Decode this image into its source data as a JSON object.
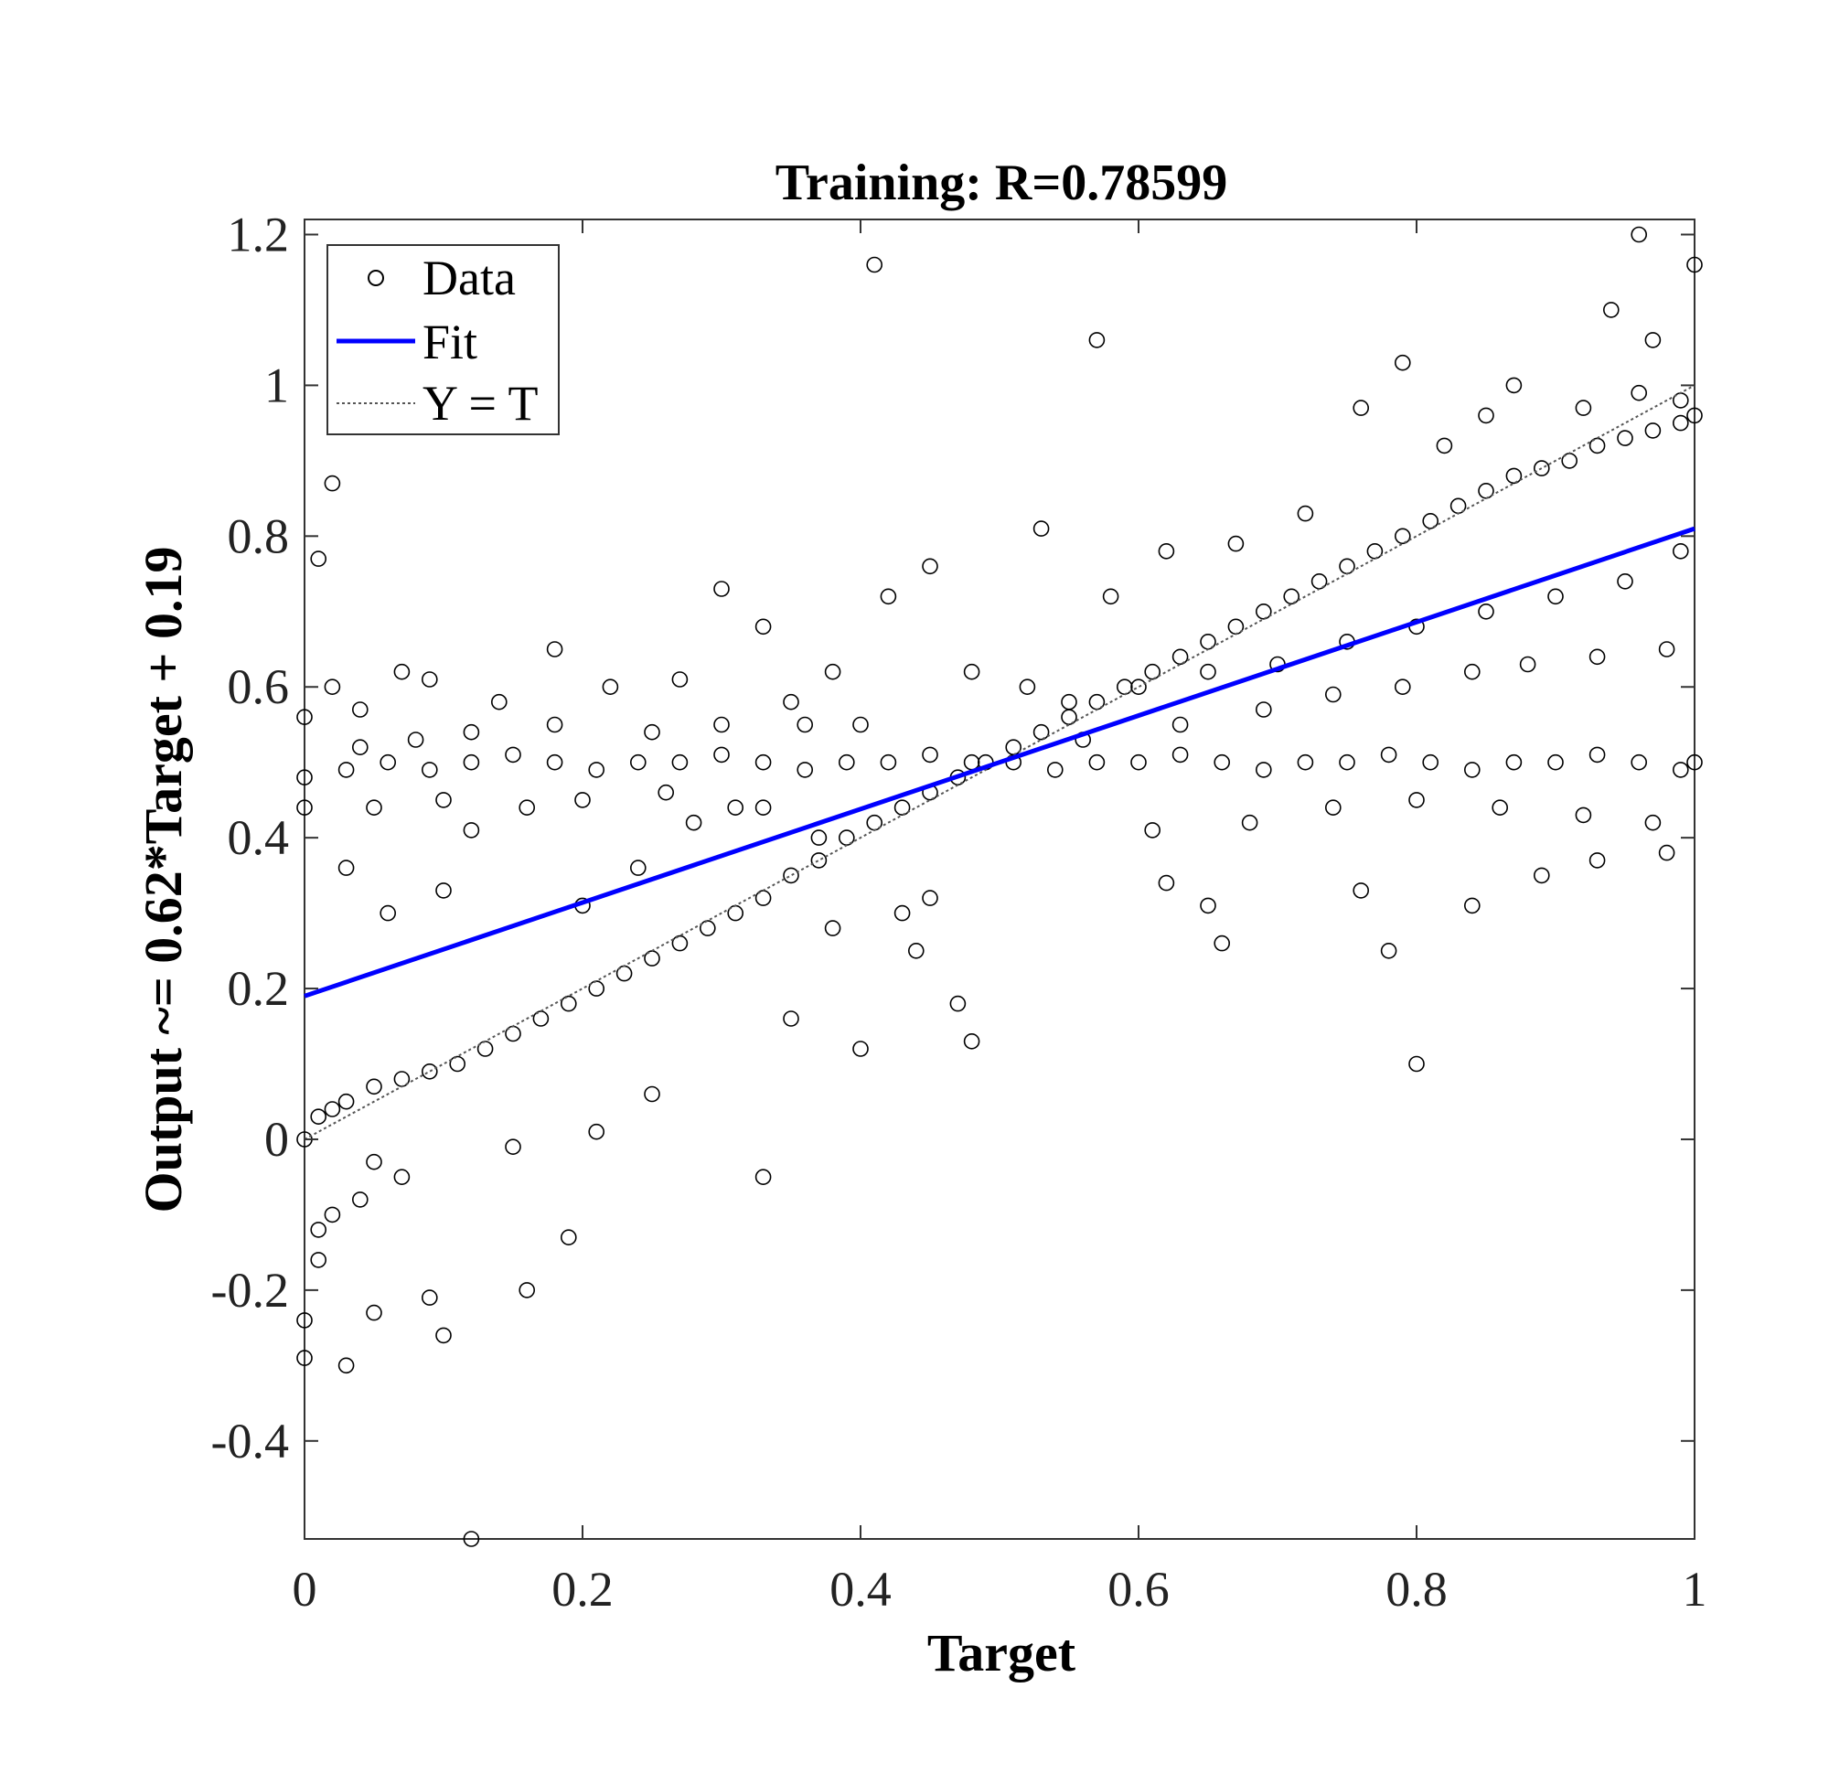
{
  "chart_data": {
    "type": "scatter",
    "title": "Training: R=0.78599",
    "xlabel": "Target",
    "ylabel": "Output ~= 0.62*Target + 0.19",
    "xlim": [
      0,
      1
    ],
    "ylim": [
      -0.53,
      1.22
    ],
    "x_ticks": [
      0,
      0.2,
      0.4,
      0.6,
      0.8,
      1
    ],
    "x_tick_labels": [
      "0",
      "0.2",
      "0.4",
      "0.6",
      "0.8",
      "1"
    ],
    "y_ticks": [
      -0.4,
      -0.2,
      0,
      0.2,
      0.4,
      0.6,
      0.8,
      1,
      1.2
    ],
    "y_tick_labels": [
      "-0.4",
      "-0.2",
      "0",
      "0.2",
      "0.4",
      "0.6",
      "0.8",
      "1",
      "1.2"
    ],
    "grid": false,
    "legend": {
      "placement": "top-left",
      "entries": [
        "Data",
        "Fit",
        "Y = T"
      ]
    },
    "colors": {
      "data": "#000000",
      "fit": "#0000ff",
      "identity": "#555555"
    },
    "fit": {
      "slope": 0.62,
      "intercept": 0.19
    },
    "series": [
      {
        "name": "Data",
        "marker": "open-circle",
        "points": [
          [
            0.0,
            0.0
          ],
          [
            0.01,
            0.03
          ],
          [
            0.02,
            0.04
          ],
          [
            0.03,
            0.05
          ],
          [
            0.05,
            0.07
          ],
          [
            0.07,
            0.08
          ],
          [
            0.09,
            0.09
          ],
          [
            0.11,
            0.1
          ],
          [
            0.13,
            0.12
          ],
          [
            0.15,
            0.14
          ],
          [
            0.17,
            0.16
          ],
          [
            0.19,
            0.18
          ],
          [
            0.21,
            0.2
          ],
          [
            0.23,
            0.22
          ],
          [
            0.25,
            0.24
          ],
          [
            0.27,
            0.26
          ],
          [
            0.29,
            0.28
          ],
          [
            0.31,
            0.3
          ],
          [
            0.33,
            0.32
          ],
          [
            0.35,
            0.35
          ],
          [
            0.37,
            0.37
          ],
          [
            0.39,
            0.4
          ],
          [
            0.41,
            0.42
          ],
          [
            0.43,
            0.44
          ],
          [
            0.45,
            0.46
          ],
          [
            0.47,
            0.48
          ],
          [
            0.49,
            0.5
          ],
          [
            0.51,
            0.52
          ],
          [
            0.53,
            0.54
          ],
          [
            0.55,
            0.56
          ],
          [
            0.57,
            0.58
          ],
          [
            0.59,
            0.6
          ],
          [
            0.61,
            0.62
          ],
          [
            0.63,
            0.64
          ],
          [
            0.65,
            0.66
          ],
          [
            0.67,
            0.68
          ],
          [
            0.69,
            0.7
          ],
          [
            0.71,
            0.72
          ],
          [
            0.73,
            0.74
          ],
          [
            0.75,
            0.76
          ],
          [
            0.77,
            0.78
          ],
          [
            0.79,
            0.8
          ],
          [
            0.81,
            0.82
          ],
          [
            0.83,
            0.84
          ],
          [
            0.85,
            0.86
          ],
          [
            0.87,
            0.88
          ],
          [
            0.89,
            0.89
          ],
          [
            0.91,
            0.9
          ],
          [
            0.93,
            0.92
          ],
          [
            0.95,
            0.93
          ],
          [
            0.97,
            0.94
          ],
          [
            0.99,
            0.95
          ],
          [
            1.0,
            0.96
          ],
          [
            0.0,
            0.48
          ],
          [
            0.03,
            0.49
          ],
          [
            0.06,
            0.5
          ],
          [
            0.09,
            0.49
          ],
          [
            0.12,
            0.5
          ],
          [
            0.15,
            0.51
          ],
          [
            0.18,
            0.5
          ],
          [
            0.21,
            0.49
          ],
          [
            0.24,
            0.5
          ],
          [
            0.27,
            0.5
          ],
          [
            0.3,
            0.51
          ],
          [
            0.33,
            0.5
          ],
          [
            0.36,
            0.49
          ],
          [
            0.39,
            0.5
          ],
          [
            0.42,
            0.5
          ],
          [
            0.45,
            0.51
          ],
          [
            0.48,
            0.5
          ],
          [
            0.51,
            0.5
          ],
          [
            0.54,
            0.49
          ],
          [
            0.57,
            0.5
          ],
          [
            0.6,
            0.5
          ],
          [
            0.63,
            0.51
          ],
          [
            0.66,
            0.5
          ],
          [
            0.69,
            0.49
          ],
          [
            0.72,
            0.5
          ],
          [
            0.75,
            0.5
          ],
          [
            0.78,
            0.51
          ],
          [
            0.81,
            0.5
          ],
          [
            0.84,
            0.49
          ],
          [
            0.87,
            0.5
          ],
          [
            0.9,
            0.5
          ],
          [
            0.93,
            0.51
          ],
          [
            0.96,
            0.5
          ],
          [
            0.99,
            0.49
          ],
          [
            1.0,
            0.5
          ],
          [
            0.02,
            0.87
          ],
          [
            0.01,
            0.77
          ],
          [
            0.41,
            1.16
          ],
          [
            0.57,
            1.06
          ],
          [
            0.96,
            1.2
          ],
          [
            1.0,
            1.16
          ],
          [
            0.94,
            1.1
          ],
          [
            0.97,
            1.06
          ],
          [
            0.79,
            1.03
          ],
          [
            0.76,
            0.97
          ],
          [
            0.53,
            0.81
          ],
          [
            0.3,
            0.73
          ],
          [
            0.42,
            0.72
          ],
          [
            0.45,
            0.76
          ],
          [
            0.07,
            0.62
          ],
          [
            0.18,
            0.65
          ],
          [
            0.33,
            0.68
          ],
          [
            0.01,
            -0.12
          ],
          [
            0.0,
            -0.24
          ],
          [
            0.0,
            -0.29
          ],
          [
            0.03,
            -0.3
          ],
          [
            0.05,
            -0.23
          ],
          [
            0.09,
            -0.21
          ],
          [
            0.1,
            -0.26
          ],
          [
            0.16,
            -0.2
          ],
          [
            0.19,
            -0.13
          ],
          [
            0.12,
            -0.53
          ],
          [
            0.33,
            -0.05
          ],
          [
            0.4,
            0.12
          ],
          [
            0.48,
            0.13
          ],
          [
            0.8,
            0.1
          ],
          [
            0.78,
            0.25
          ],
          [
            0.76,
            0.33
          ],
          [
            0.65,
            0.31
          ],
          [
            0.62,
            0.34
          ],
          [
            0.66,
            0.26
          ],
          [
            0.84,
            0.31
          ],
          [
            0.89,
            0.35
          ],
          [
            0.93,
            0.37
          ],
          [
            0.98,
            0.38
          ],
          [
            0.45,
            0.32
          ],
          [
            0.43,
            0.3
          ],
          [
            0.44,
            0.25
          ],
          [
            0.47,
            0.18
          ],
          [
            0.38,
            0.28
          ],
          [
            0.35,
            0.16
          ],
          [
            0.25,
            0.06
          ],
          [
            0.21,
            0.01
          ],
          [
            0.15,
            -0.01
          ],
          [
            0.07,
            -0.05
          ],
          [
            0.05,
            -0.03
          ],
          [
            0.04,
            -0.08
          ],
          [
            0.02,
            -0.1
          ],
          [
            0.01,
            -0.16
          ],
          [
            0.1,
            0.33
          ],
          [
            0.12,
            0.41
          ],
          [
            0.2,
            0.31
          ],
          [
            0.24,
            0.36
          ],
          [
            0.28,
            0.42
          ],
          [
            0.33,
            0.44
          ],
          [
            0.37,
            0.4
          ],
          [
            0.06,
            0.3
          ],
          [
            0.03,
            0.36
          ],
          [
            0.0,
            0.56
          ],
          [
            0.02,
            0.6
          ],
          [
            0.04,
            0.57
          ],
          [
            0.09,
            0.61
          ],
          [
            0.14,
            0.58
          ],
          [
            0.22,
            0.6
          ],
          [
            0.27,
            0.61
          ],
          [
            0.35,
            0.58
          ],
          [
            0.38,
            0.62
          ],
          [
            0.48,
            0.62
          ],
          [
            0.52,
            0.6
          ],
          [
            0.58,
            0.72
          ],
          [
            0.62,
            0.78
          ],
          [
            0.67,
            0.79
          ],
          [
            0.72,
            0.83
          ],
          [
            0.82,
            0.92
          ],
          [
            0.85,
            0.96
          ],
          [
            0.87,
            1.0
          ],
          [
            0.92,
            0.97
          ],
          [
            0.96,
            0.99
          ],
          [
            0.99,
            0.98
          ],
          [
            0.61,
            0.41
          ],
          [
            0.68,
            0.42
          ],
          [
            0.74,
            0.44
          ],
          [
            0.8,
            0.45
          ],
          [
            0.86,
            0.44
          ],
          [
            0.92,
            0.43
          ],
          [
            0.97,
            0.42
          ],
          [
            0.55,
            0.58
          ],
          [
            0.6,
            0.6
          ],
          [
            0.65,
            0.62
          ],
          [
            0.7,
            0.63
          ],
          [
            0.75,
            0.66
          ],
          [
            0.8,
            0.68
          ],
          [
            0.85,
            0.7
          ],
          [
            0.9,
            0.72
          ],
          [
            0.95,
            0.74
          ],
          [
            0.99,
            0.78
          ],
          [
            0.56,
            0.53
          ],
          [
            0.63,
            0.55
          ],
          [
            0.69,
            0.57
          ],
          [
            0.74,
            0.59
          ],
          [
            0.79,
            0.6
          ],
          [
            0.84,
            0.62
          ],
          [
            0.88,
            0.63
          ],
          [
            0.93,
            0.64
          ],
          [
            0.98,
            0.65
          ],
          [
            0.4,
            0.55
          ],
          [
            0.36,
            0.55
          ],
          [
            0.3,
            0.55
          ],
          [
            0.25,
            0.54
          ],
          [
            0.18,
            0.55
          ],
          [
            0.12,
            0.54
          ],
          [
            0.08,
            0.53
          ],
          [
            0.04,
            0.52
          ],
          [
            0.2,
            0.45
          ],
          [
            0.26,
            0.46
          ],
          [
            0.31,
            0.44
          ],
          [
            0.16,
            0.44
          ],
          [
            0.1,
            0.45
          ],
          [
            0.05,
            0.44
          ],
          [
            0.0,
            0.44
          ]
        ]
      }
    ]
  }
}
